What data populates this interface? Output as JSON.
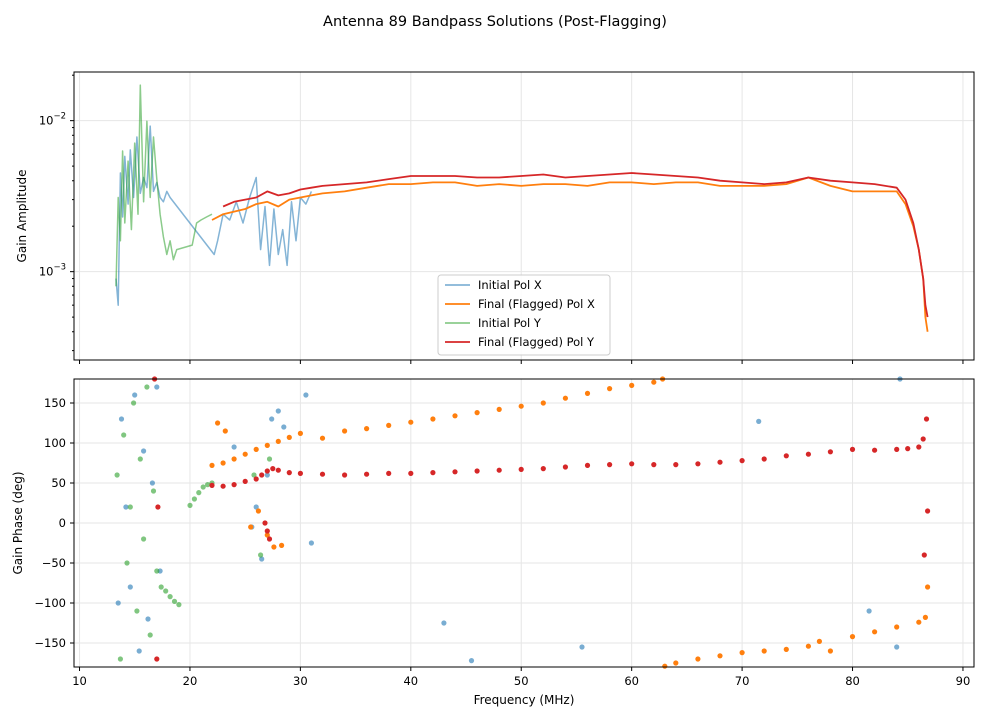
{
  "chart_data": {
    "title": "Antenna 89 Bandpass Solutions (Post-Flagging)",
    "xlabel": "Frequency (MHz)",
    "xlim": [
      9.5,
      91
    ],
    "xticks": [
      10,
      20,
      30,
      40,
      50,
      60,
      70,
      80,
      90
    ],
    "colors": {
      "initial_x": "#1f77b4",
      "final_x": "#ff7f0e",
      "initial_y": "#2ca02c",
      "final_y": "#d62728"
    },
    "legend": [
      "Initial Pol X",
      "Final (Flagged) Pol X",
      "Initial Pol Y",
      "Final (Flagged) Pol Y"
    ],
    "amplitude": {
      "type": "line",
      "ylabel": "Gain Amplitude",
      "yscale": "log",
      "ylim": [
        0.00026,
        0.021
      ],
      "ytick_labels": [
        {
          "base": "10",
          "exp": "−2",
          "value": 0.01
        },
        {
          "base": "10",
          "exp": "−3",
          "value": 0.001
        }
      ],
      "series": [
        {
          "name": "Initial Pol X",
          "key": "initial_x",
          "x": [
            13.3,
            13.5,
            13.7,
            13.9,
            14.1,
            14.4,
            14.6,
            14.9,
            15.2,
            15.5,
            15.8,
            16.1,
            16.4,
            16.7,
            17.0,
            17.3,
            17.6,
            17.9,
            18.2,
            22.2,
            22.5,
            23.0,
            23.6,
            24.2,
            24.8,
            25.4,
            26.0,
            26.4,
            26.8,
            27.2,
            27.6,
            28.0,
            28.4,
            28.8,
            29.2,
            29.6,
            30.0,
            30.5,
            31.0
          ],
          "values": [
            0.0009,
            0.0006,
            0.0045,
            0.0023,
            0.0058,
            0.0028,
            0.0064,
            0.0031,
            0.0078,
            0.0033,
            0.0042,
            0.0036,
            0.0092,
            0.0034,
            0.0039,
            0.0031,
            0.0029,
            0.0034,
            0.0031,
            0.0013,
            0.0016,
            0.0024,
            0.0022,
            0.0029,
            0.0021,
            0.0031,
            0.0042,
            0.0014,
            0.0027,
            0.0011,
            0.0026,
            0.0013,
            0.0019,
            0.0011,
            0.0029,
            0.0016,
            0.0031,
            0.0028,
            0.0034
          ]
        },
        {
          "name": "Final (Flagged) Pol X",
          "key": "final_x",
          "x": [
            22.0,
            23.0,
            24.0,
            25.0,
            26.0,
            27.0,
            28.0,
            29.0,
            30.0,
            31.0,
            32.0,
            34.0,
            36.0,
            38.0,
            40.0,
            42.0,
            44.0,
            46.0,
            48.0,
            50.0,
            52.0,
            54.0,
            56.0,
            58.0,
            60.0,
            62.0,
            64.0,
            66.0,
            68.0,
            70.0,
            72.0,
            74.0,
            76.0,
            78.0,
            80.0,
            82.0,
            84.0,
            84.8,
            85.5,
            86.0,
            86.4,
            86.6,
            86.8
          ],
          "values": [
            0.0022,
            0.0024,
            0.0025,
            0.0026,
            0.0028,
            0.0029,
            0.0027,
            0.003,
            0.0031,
            0.0032,
            0.0033,
            0.0034,
            0.0036,
            0.0038,
            0.0038,
            0.0039,
            0.0039,
            0.0037,
            0.0038,
            0.0037,
            0.0038,
            0.0038,
            0.0037,
            0.0039,
            0.0039,
            0.0038,
            0.0039,
            0.0039,
            0.0037,
            0.0037,
            0.0037,
            0.0038,
            0.0042,
            0.0037,
            0.0034,
            0.0034,
            0.0034,
            0.0028,
            0.002,
            0.0014,
            0.0009,
            0.0005,
            0.0004
          ]
        },
        {
          "name": "Initial Pol Y",
          "key": "initial_y",
          "x": [
            13.3,
            13.5,
            13.7,
            13.9,
            14.1,
            14.4,
            14.7,
            15.0,
            15.3,
            15.5,
            15.8,
            16.1,
            16.4,
            16.7,
            17.0,
            17.3,
            17.6,
            17.9,
            18.2,
            18.5,
            18.8,
            20.2,
            20.6,
            21.0,
            21.5,
            22.0
          ],
          "values": [
            0.0008,
            0.0031,
            0.0016,
            0.0063,
            0.0021,
            0.0054,
            0.0019,
            0.0071,
            0.0024,
            0.0172,
            0.0029,
            0.0099,
            0.0031,
            0.0078,
            0.0041,
            0.0024,
            0.0017,
            0.0013,
            0.0016,
            0.0012,
            0.0014,
            0.0015,
            0.0021,
            0.0022,
            0.0023,
            0.0024
          ]
        },
        {
          "name": "Final (Flagged) Pol Y",
          "key": "final_y",
          "x": [
            23.0,
            24.0,
            25.0,
            26.0,
            27.0,
            28.0,
            29.0,
            30.0,
            31.0,
            32.0,
            34.0,
            36.0,
            38.0,
            40.0,
            42.0,
            44.0,
            46.0,
            48.0,
            50.0,
            52.0,
            54.0,
            56.0,
            58.0,
            60.0,
            62.0,
            64.0,
            66.0,
            68.0,
            70.0,
            72.0,
            74.0,
            76.0,
            78.0,
            80.0,
            82.0,
            84.0,
            84.8,
            85.5,
            86.0,
            86.4,
            86.6,
            86.8
          ],
          "values": [
            0.0027,
            0.0029,
            0.003,
            0.0031,
            0.0034,
            0.0032,
            0.0033,
            0.0035,
            0.0036,
            0.0037,
            0.0038,
            0.0039,
            0.0041,
            0.0043,
            0.0043,
            0.0043,
            0.0042,
            0.0042,
            0.0043,
            0.0044,
            0.0042,
            0.0043,
            0.0044,
            0.0045,
            0.0044,
            0.0043,
            0.0042,
            0.004,
            0.0039,
            0.0038,
            0.0039,
            0.0042,
            0.004,
            0.0039,
            0.0038,
            0.0036,
            0.003,
            0.0021,
            0.0014,
            0.0009,
            0.0006,
            0.0005
          ]
        }
      ]
    },
    "phase": {
      "type": "scatter",
      "ylabel": "Gain Phase (deg)",
      "ylim": [
        -180,
        180
      ],
      "yticks": [
        150,
        100,
        50,
        0,
        -50,
        -100,
        -150
      ],
      "series": [
        {
          "name": "Initial Pol X",
          "key": "initial_x",
          "x": [
            13.5,
            13.8,
            14.2,
            14.6,
            15.0,
            15.4,
            15.8,
            16.2,
            16.6,
            17.0,
            17.3,
            24.0,
            25.6,
            26.0,
            26.5,
            27.0,
            27.4,
            28.0,
            28.5,
            30.5,
            31.0,
            43.0,
            45.5,
            55.5,
            71.5,
            81.5,
            84.0,
            84.3
          ],
          "values": [
            -100,
            130,
            20,
            -80,
            160,
            -160,
            90,
            -120,
            50,
            170,
            -60,
            95,
            -5,
            20,
            -45,
            60,
            130,
            140,
            120,
            160,
            -25,
            -125,
            -172,
            -155,
            127,
            -110,
            -155,
            180
          ]
        },
        {
          "name": "Final (Flagged) Pol X",
          "key": "final_x",
          "x": [
            22.0,
            23.0,
            24.0,
            25.0,
            26.0,
            27.0,
            28.0,
            29.0,
            30.0,
            32.0,
            34.0,
            36.0,
            38.0,
            40.0,
            42.0,
            44.0,
            46.0,
            48.0,
            50.0,
            52.0,
            54.0,
            56.0,
            58.0,
            60.0,
            62.0,
            62.8
          ],
          "values": [
            72,
            75,
            80,
            86,
            92,
            97,
            102,
            107,
            112,
            106,
            115,
            118,
            122,
            126,
            130,
            134,
            138,
            142,
            146,
            150,
            156,
            162,
            168,
            172,
            176,
            180
          ],
          "x2": [
            63.0,
            64.0,
            66.0,
            68.0,
            70.0,
            72.0,
            74.0,
            76.0,
            77.0,
            78.0,
            80.0,
            82.0,
            84.0,
            86.0,
            86.6
          ],
          "values2": [
            -179,
            -175,
            -170,
            -166,
            -162,
            -160,
            -158,
            -154,
            -148,
            -160,
            -142,
            -136,
            -130,
            -124,
            -118
          ],
          "x3": [
            22.5,
            23.2,
            25.5,
            26.2,
            27.0,
            27.6,
            28.3,
            86.8
          ],
          "values3": [
            125,
            115,
            -5,
            15,
            -15,
            -30,
            -28,
            -80
          ]
        },
        {
          "name": "Initial Pol Y",
          "key": "initial_y",
          "x": [
            13.4,
            13.7,
            14.0,
            14.3,
            14.6,
            14.9,
            15.2,
            15.5,
            15.8,
            16.1,
            16.4,
            16.7,
            17.0,
            17.4,
            17.8,
            18.2,
            18.6,
            19.0,
            20.0,
            20.4,
            20.8,
            21.2,
            21.6,
            22.0,
            25.8,
            26.4,
            27.2
          ],
          "values": [
            60,
            -170,
            110,
            -50,
            20,
            150,
            -110,
            80,
            -20,
            170,
            -140,
            40,
            -60,
            -80,
            -85,
            -92,
            -98,
            -102,
            22,
            30,
            38,
            45,
            48,
            50,
            60,
            -40,
            80
          ]
        },
        {
          "name": "Final (Flagged) Pol Y",
          "key": "final_y",
          "x": [
            22.0,
            23.0,
            24.0,
            25.0,
            26.0,
            26.5,
            27.0,
            27.5,
            28.0,
            29.0,
            30.0,
            32.0,
            34.0,
            36.0,
            38.0,
            40.0,
            42.0,
            44.0,
            46.0,
            48.0,
            50.0,
            52.0,
            54.0,
            56.0,
            58.0,
            60.0,
            62.0,
            64.0,
            66.0,
            68.0,
            70.0,
            72.0,
            74.0,
            76.0,
            78.0,
            80.0,
            82.0,
            84.0,
            85.0,
            86.0,
            86.4,
            86.7
          ],
          "values": [
            47,
            46,
            48,
            52,
            55,
            60,
            65,
            68,
            66,
            63,
            62,
            61,
            60,
            61,
            62,
            62,
            63,
            64,
            65,
            66,
            67,
            68,
            70,
            72,
            73,
            74,
            73,
            73,
            74,
            76,
            78,
            80,
            84,
            86,
            89,
            92,
            91,
            92,
            93,
            95,
            105,
            130
          ],
          "x3": [
            16.8,
            17.0,
            17.1,
            26.8,
            27.0,
            27.2,
            86.5,
            86.8
          ],
          "values3": [
            180,
            -170,
            20,
            0,
            -10,
            -20,
            -40,
            15
          ]
        }
      ]
    }
  }
}
